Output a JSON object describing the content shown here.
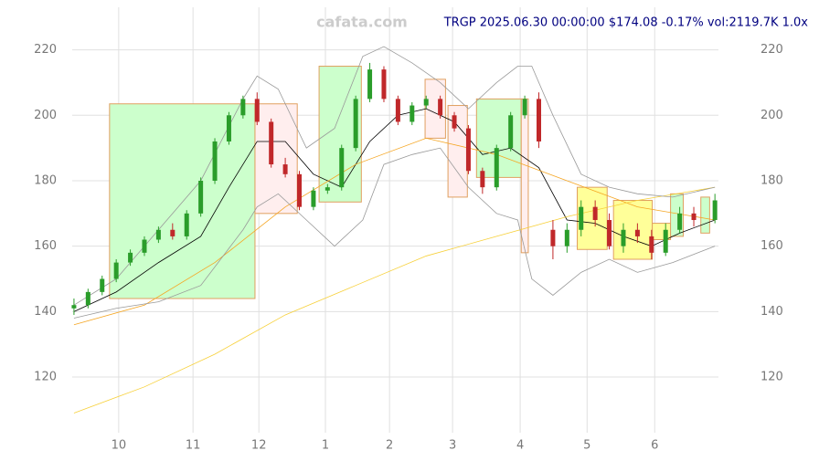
{
  "chart_data": {
    "type": "candlestick",
    "title": "TRGP 2025.06.30 00:00:00 $174.08 -0.17% vol:2119.7K 1.0x",
    "watermark": "cafata.com",
    "xlim": [
      -0.5,
      183
    ],
    "ylim": [
      103,
      233
    ],
    "xticks": [
      {
        "value": 12.7,
        "label": "10"
      },
      {
        "value": 33.8,
        "label": "11"
      },
      {
        "value": 52.5,
        "label": "12"
      },
      {
        "value": 71.4,
        "label": "1"
      },
      {
        "value": 89.6,
        "label": "2"
      },
      {
        "value": 107.5,
        "label": "3"
      },
      {
        "value": 126.7,
        "label": "4"
      },
      {
        "value": 145.7,
        "label": "5"
      },
      {
        "value": 164.9,
        "label": "6"
      }
    ],
    "yticks": [
      120,
      140,
      160,
      180,
      200,
      220
    ],
    "grid": true,
    "up_color": "#2a9d2a",
    "down_color": "#c0282a",
    "x": [
      0,
      4,
      8,
      12,
      16,
      20,
      24,
      28,
      32,
      36,
      40,
      44,
      48,
      52,
      56,
      60,
      64,
      68,
      72,
      76,
      80,
      84,
      88,
      92,
      96,
      100,
      104,
      108,
      112,
      116,
      120,
      124,
      128,
      132,
      136,
      140,
      144,
      148,
      152,
      156,
      160,
      164,
      168,
      172,
      176,
      182
    ],
    "open": [
      141,
      142,
      146,
      150,
      155,
      158,
      162,
      165,
      163,
      170,
      180,
      192,
      200,
      205,
      198,
      185,
      182,
      172,
      177,
      178,
      190,
      205,
      214,
      205,
      198,
      203,
      205,
      200,
      196,
      183,
      178,
      190,
      200,
      205,
      165,
      160,
      165,
      172,
      168,
      160,
      165,
      163,
      158,
      165,
      170,
      168
    ],
    "high": [
      144,
      147,
      151,
      156,
      159,
      163,
      166,
      167,
      171,
      181,
      193,
      201,
      206,
      207,
      199,
      187,
      183,
      178,
      179,
      191,
      206,
      216,
      215,
      206,
      204,
      206,
      206,
      201,
      197,
      184,
      191,
      201,
      206,
      207,
      168,
      167,
      174,
      174,
      170,
      167,
      167,
      165,
      167,
      172,
      172,
      176
    ],
    "low": [
      139,
      141,
      145,
      149,
      154,
      157,
      161,
      162,
      162,
      169,
      179,
      191,
      199,
      197,
      184,
      181,
      171,
      171,
      176,
      177,
      189,
      204,
      204,
      197,
      197,
      202,
      199,
      195,
      182,
      176,
      177,
      189,
      199,
      190,
      156,
      158,
      163,
      166,
      159,
      158,
      161,
      156,
      157,
      164,
      166,
      167
    ],
    "close": [
      142,
      146,
      150,
      155,
      158,
      162,
      165,
      163,
      170,
      180,
      192,
      200,
      205,
      198,
      185,
      182,
      172,
      177,
      178,
      190,
      205,
      214,
      205,
      198,
      203,
      205,
      200,
      196,
      183,
      178,
      190,
      200,
      205,
      192,
      160,
      165,
      172,
      168,
      160,
      165,
      163,
      158,
      165,
      170,
      168,
      174
    ],
    "zones": [
      {
        "x0": 10.1,
        "x1": 51.4,
        "y0": 144,
        "y1": 203.5,
        "color": "#ccffcc"
      },
      {
        "x0": 51.4,
        "x1": 63.4,
        "y0": 170,
        "y1": 203.5,
        "color": "#ffeeee"
      },
      {
        "x0": 69.6,
        "x1": 81.6,
        "y0": 173.5,
        "y1": 215,
        "color": "#ccffcc"
      },
      {
        "x0": 99.7,
        "x1": 105.5,
        "y0": 193,
        "y1": 211,
        "color": "#ffeeee"
      },
      {
        "x0": 106.2,
        "x1": 111.7,
        "y0": 175,
        "y1": 203,
        "color": "#ffeeee"
      },
      {
        "x0": 114.3,
        "x1": 127,
        "y0": 181,
        "y1": 205,
        "color": "#ccffcc"
      },
      {
        "x0": 127,
        "x1": 129,
        "y0": 158,
        "y1": 205,
        "color": "#ffeeee"
      },
      {
        "x0": 142.9,
        "x1": 151.4,
        "y0": 159,
        "y1": 178,
        "color": "#ffff99"
      },
      {
        "x0": 153.2,
        "x1": 164.2,
        "y0": 156,
        "y1": 174,
        "color": "#ffff99"
      },
      {
        "x0": 164.2,
        "x1": 169.4,
        "y0": 162,
        "y1": 167,
        "color": "#ffff99"
      },
      {
        "x0": 169.4,
        "x1": 173,
        "y0": 163,
        "y1": 176,
        "color": "#ccffcc"
      },
      {
        "x0": 178,
        "x1": 180.5,
        "y0": 164,
        "y1": 175,
        "color": "#ccffcc"
      }
    ],
    "lines": [
      {
        "color": "#000000",
        "x": [
          0,
          12,
          24,
          36,
          44,
          52,
          60,
          68,
          76,
          84,
          92,
          100,
          108,
          116,
          124,
          132,
          140,
          148,
          156,
          164,
          172,
          182
        ],
        "values": [
          140,
          146,
          155,
          163,
          178,
          192,
          192,
          182,
          178,
          192,
          200,
          202,
          198,
          188,
          190,
          184,
          168,
          167,
          163,
          160,
          164,
          168
        ]
      },
      {
        "color": "#f5a623",
        "x": [
          0,
          20,
          40,
          60,
          80,
          100,
          120,
          140,
          160,
          182
        ],
        "values": [
          136,
          142,
          155,
          172,
          185,
          193,
          188,
          180,
          172,
          168
        ]
      },
      {
        "color": "#f7d038",
        "x": [
          0,
          20,
          40,
          60,
          80,
          100,
          120,
          140,
          160,
          182
        ],
        "values": [
          109,
          117,
          127,
          139,
          148,
          157,
          163,
          169,
          174,
          178
        ]
      },
      {
        "color": "#999999",
        "x": [
          0,
          12,
          24,
          36,
          48,
          52,
          58,
          66,
          74,
          82,
          88,
          96,
          104,
          112,
          120,
          126,
          130,
          136,
          144,
          152,
          160,
          170,
          182
        ],
        "values": [
          142,
          150,
          165,
          180,
          205,
          212,
          208,
          190,
          196,
          218,
          221,
          216,
          210,
          202,
          210,
          215,
          215,
          200,
          182,
          178,
          176,
          175,
          178
        ]
      },
      {
        "color": "#999999",
        "x": [
          0,
          12,
          24,
          36,
          48,
          52,
          58,
          66,
          74,
          82,
          88,
          96,
          104,
          112,
          120,
          126,
          130,
          136,
          144,
          152,
          160,
          170,
          182
        ],
        "values": [
          138,
          141,
          143,
          148,
          165,
          172,
          176,
          168,
          160,
          168,
          185,
          188,
          190,
          178,
          170,
          168,
          150,
          145,
          152,
          156,
          152,
          155,
          160
        ]
      }
    ]
  }
}
